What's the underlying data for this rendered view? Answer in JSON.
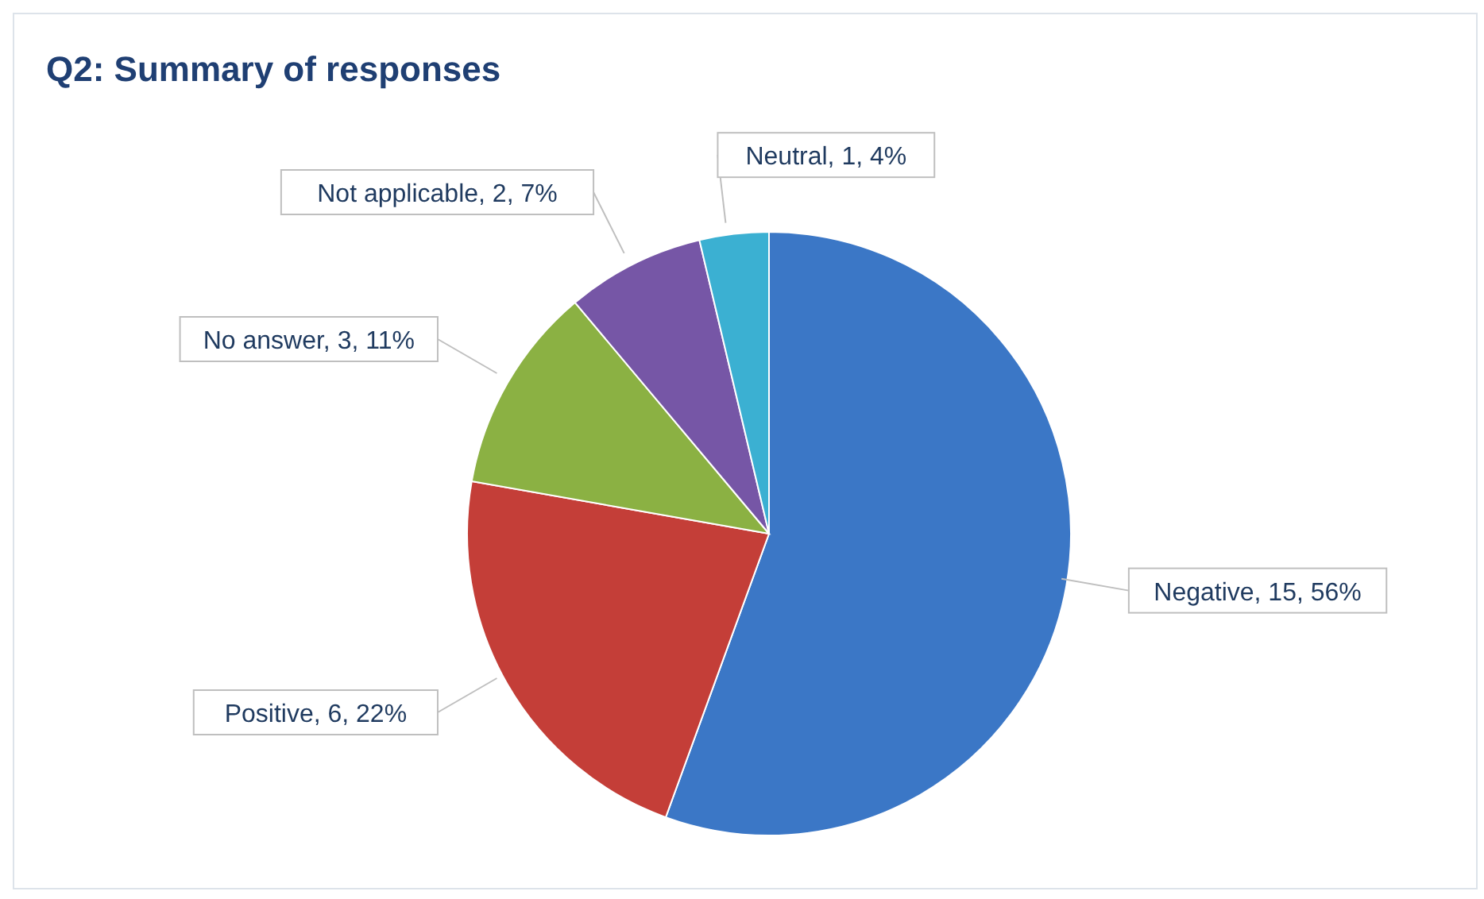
{
  "chart_data": {
    "type": "pie",
    "title": "Q2: Summary of responses",
    "categories": [
      "Negative",
      "Positive",
      "No answer",
      "Not applicable",
      "Neutral"
    ],
    "values": [
      15,
      6,
      3,
      2,
      1
    ],
    "colors": [
      "#3b77c6",
      "#c43e38",
      "#8bb143",
      "#7656a6",
      "#3bb0d2"
    ],
    "value_labels": [
      "15, 56%",
      "6, 22%",
      "3, 11%",
      "2, 7%",
      "1, 4%"
    ]
  }
}
